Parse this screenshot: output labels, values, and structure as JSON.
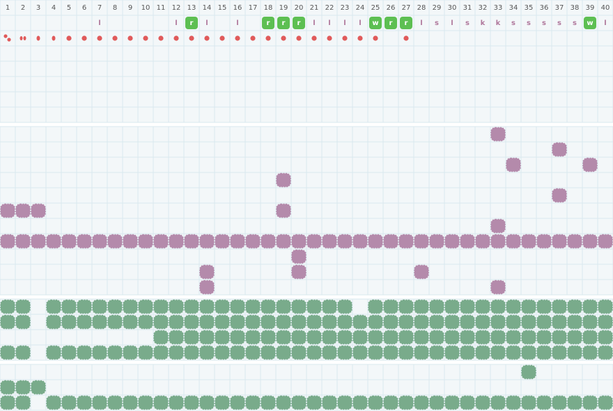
{
  "header": {
    "columns": [
      1,
      2,
      3,
      4,
      5,
      6,
      7,
      8,
      9,
      10,
      11,
      12,
      13,
      14,
      15,
      16,
      17,
      18,
      19,
      20,
      21,
      22,
      23,
      24,
      25,
      26,
      27,
      28,
      29,
      30,
      31,
      32,
      33,
      34,
      35,
      36,
      37,
      38,
      39,
      40
    ]
  },
  "markers": [
    {
      "col": 7,
      "text": "l"
    },
    {
      "col": 12,
      "text": "l"
    },
    {
      "col": 13,
      "text": "r",
      "highlight": true
    },
    {
      "col": 14,
      "text": "l"
    },
    {
      "col": 16,
      "text": "l"
    },
    {
      "col": 18,
      "text": "r",
      "highlight": true
    },
    {
      "col": 19,
      "text": "r",
      "highlight": true
    },
    {
      "col": 20,
      "text": "r",
      "highlight": true
    },
    {
      "col": 21,
      "text": "l"
    },
    {
      "col": 22,
      "text": "l"
    },
    {
      "col": 23,
      "text": "l"
    },
    {
      "col": 24,
      "text": "l"
    },
    {
      "col": 25,
      "text": "w",
      "highlight": true
    },
    {
      "col": 26,
      "text": "r",
      "highlight": true
    },
    {
      "col": 27,
      "text": "r",
      "highlight": true
    },
    {
      "col": 28,
      "text": "l"
    },
    {
      "col": 29,
      "text": "s"
    },
    {
      "col": 30,
      "text": "l"
    },
    {
      "col": 31,
      "text": "s"
    },
    {
      "col": 32,
      "text": "k"
    },
    {
      "col": 33,
      "text": "k"
    },
    {
      "col": 34,
      "text": "s"
    },
    {
      "col": 35,
      "text": "s"
    },
    {
      "col": 36,
      "text": "s"
    },
    {
      "col": 37,
      "text": "s"
    },
    {
      "col": 38,
      "text": "s"
    },
    {
      "col": 39,
      "text": "w",
      "highlight": true
    },
    {
      "col": 40,
      "text": "l"
    }
  ],
  "dots": [
    1,
    2,
    3,
    4,
    5,
    6,
    7,
    8,
    9,
    10,
    11,
    12,
    13,
    14,
    15,
    16,
    17,
    18,
    19,
    20,
    21,
    22,
    23,
    24,
    25,
    27
  ],
  "sections": [
    {
      "color": "#b48aab",
      "rows": [
        [
          33
        ],
        [
          37
        ],
        [
          34,
          39
        ],
        [
          19
        ],
        [
          37
        ],
        [
          1,
          2,
          3,
          19
        ],
        [
          33
        ],
        [
          1,
          2,
          3,
          4,
          5,
          6,
          7,
          8,
          9,
          10,
          11,
          12,
          13,
          14,
          15,
          16,
          17,
          18,
          19,
          20,
          21,
          22,
          23,
          24,
          25,
          26,
          27,
          28,
          29,
          30,
          31,
          32,
          33,
          34,
          35,
          36,
          37,
          38,
          39,
          40
        ],
        [
          20
        ],
        [
          14,
          20,
          28
        ],
        [
          14,
          33
        ]
      ]
    },
    {
      "color": "#79ab8b",
      "rows": [
        [
          1,
          2,
          4,
          5,
          6,
          7,
          8,
          9,
          10,
          11,
          12,
          13,
          14,
          15,
          16,
          17,
          18,
          19,
          20,
          21,
          22,
          23,
          25,
          26,
          27,
          28,
          29,
          30,
          31,
          32,
          33,
          34,
          35,
          36,
          37,
          38,
          39,
          40
        ],
        [
          1,
          2,
          4,
          5,
          6,
          7,
          8,
          9,
          10,
          11,
          12,
          13,
          14,
          15,
          16,
          17,
          18,
          19,
          20,
          21,
          22,
          23,
          24,
          25,
          26,
          27,
          28,
          29,
          30,
          31,
          32,
          33,
          34,
          35,
          36,
          37,
          38,
          39,
          40
        ],
        [
          11,
          12,
          13,
          14,
          15,
          16,
          17,
          18,
          19,
          20,
          21,
          22,
          23,
          24,
          25,
          26,
          27,
          28,
          29,
          30,
          31,
          32,
          33,
          34,
          35,
          36,
          37,
          38,
          39,
          40
        ],
        [
          1,
          2,
          4,
          5,
          6,
          7,
          8,
          9,
          10,
          11,
          12,
          13,
          14,
          15,
          16,
          17,
          18,
          19,
          20,
          21,
          22,
          23,
          24,
          25,
          26,
          27,
          28,
          29,
          30,
          31,
          32,
          33,
          34,
          35,
          36,
          37,
          38,
          39,
          40
        ]
      ]
    },
    {
      "color": "#79ab8b",
      "rows": [
        [
          35
        ],
        [
          1,
          2,
          3
        ],
        [
          1,
          2,
          4,
          5,
          6,
          7,
          8,
          9,
          10,
          11,
          12,
          13,
          14,
          15,
          16,
          17,
          18,
          19,
          20,
          21,
          22,
          23,
          24,
          25,
          26,
          27,
          28,
          29,
          30,
          31,
          32,
          33,
          34,
          35,
          36,
          37,
          38,
          39,
          40
        ]
      ]
    }
  ]
}
